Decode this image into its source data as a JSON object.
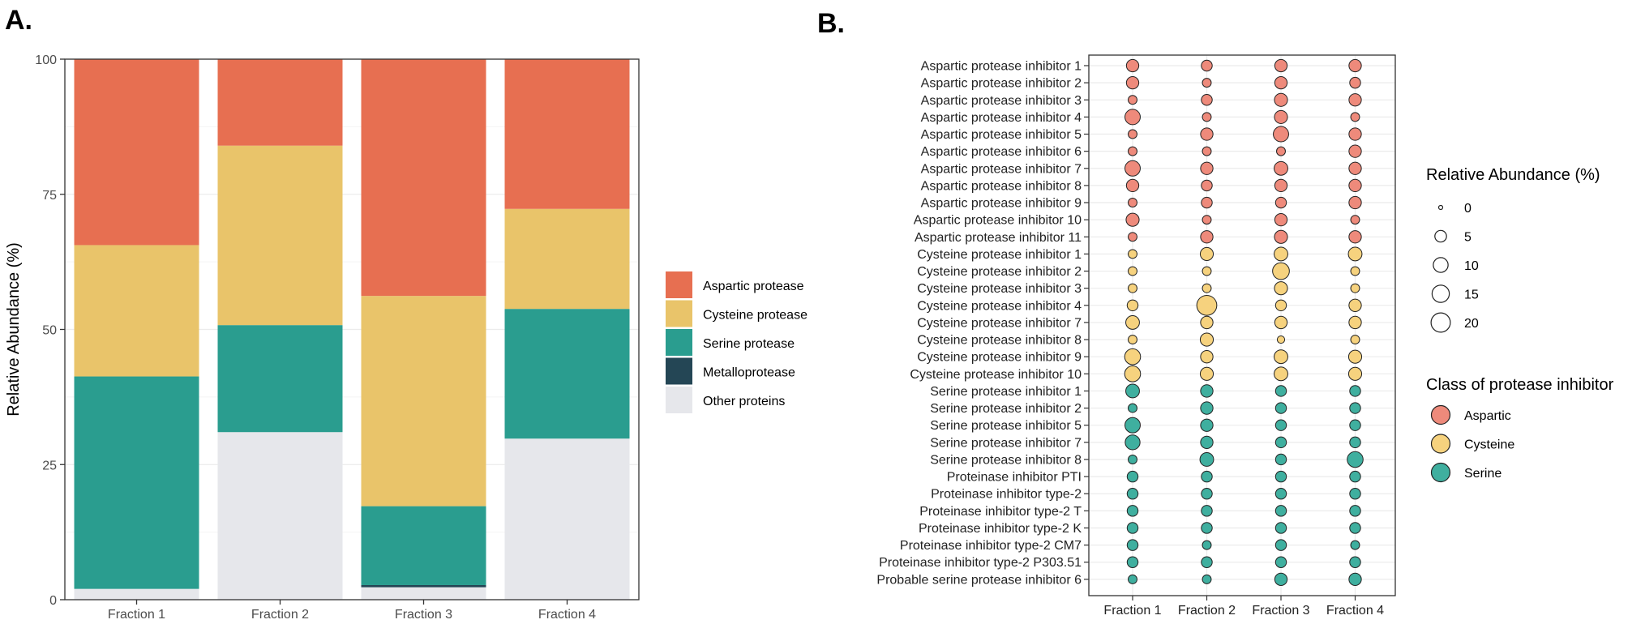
{
  "panel_a_label": "A.",
  "panel_b_label": "B.",
  "chart_data": [
    {
      "type": "bar",
      "stacked": true,
      "title": "",
      "xlabel": "",
      "ylabel": "Relative Abundance (%)",
      "ylim": [
        0,
        100
      ],
      "yticks": [
        "0",
        "25",
        "50",
        "75",
        "100"
      ],
      "categories": [
        "Fraction 1",
        "Fraction 2",
        "Fraction 3",
        "Fraction 4"
      ],
      "legend_position": "right",
      "series": [
        {
          "name": "Other proteins",
          "color": "#E6E7EB",
          "values": [
            2,
            31,
            2.3,
            29.8
          ]
        },
        {
          "name": "Metalloprotease",
          "color": "#244655",
          "values": [
            0,
            0,
            0.4,
            0
          ]
        },
        {
          "name": "Serine protease",
          "color": "#2A9D8F",
          "values": [
            39.3,
            19.8,
            14.6,
            24
          ]
        },
        {
          "name": "Cysteine protease",
          "color": "#E9C46A",
          "values": [
            24.3,
            33.2,
            38.9,
            18.5
          ]
        },
        {
          "name": "Aspartic protease",
          "color": "#E76F51",
          "values": [
            34.4,
            16,
            43.8,
            27.7
          ]
        }
      ],
      "legend_order": [
        "Aspartic protease",
        "Cysteine protease",
        "Serine protease",
        "Metalloprotease",
        "Other proteins"
      ]
    },
    {
      "type": "scatter",
      "subtype": "bubble",
      "xlabel": "",
      "ylabel": "",
      "categories": [
        "Fraction 1",
        "Fraction 2",
        "Fraction 3",
        "Fraction 4"
      ],
      "size_legend_title": "Relative Abundance (%)",
      "size_legend_values": [
        0,
        5,
        10,
        15,
        20
      ],
      "size_legend_labels": [
        "0",
        "5",
        "10",
        "15",
        "20"
      ],
      "class_legend_title": "Class of protease inhibitor",
      "classes": [
        {
          "name": "Aspartic",
          "color": "#EE8A7B"
        },
        {
          "name": "Cysteine",
          "color": "#F6D27E"
        },
        {
          "name": "Serine",
          "color": "#3FAF9F"
        }
      ],
      "rows": [
        {
          "label": "Aspartic protease inhibitor 1",
          "class": "Aspartic",
          "values": [
            6,
            4,
            6,
            6
          ]
        },
        {
          "label": "Aspartic protease inhibitor 2",
          "class": "Aspartic",
          "values": [
            6,
            2,
            6,
            4
          ]
        },
        {
          "label": "Aspartic protease inhibitor 3",
          "class": "Aspartic",
          "values": [
            2,
            4,
            7,
            6
          ]
        },
        {
          "label": "Aspartic protease inhibitor 4",
          "class": "Aspartic",
          "values": [
            11,
            2,
            7,
            2
          ]
        },
        {
          "label": "Aspartic protease inhibitor 5",
          "class": "Aspartic",
          "values": [
            2,
            6,
            11,
            6
          ]
        },
        {
          "label": "Aspartic protease inhibitor 6",
          "class": "Aspartic",
          "values": [
            2,
            2,
            2,
            6
          ]
        },
        {
          "label": "Aspartic protease inhibitor 7",
          "class": "Aspartic",
          "values": [
            11,
            6,
            8,
            6
          ]
        },
        {
          "label": "Aspartic protease inhibitor 8",
          "class": "Aspartic",
          "values": [
            6,
            4,
            6,
            6
          ]
        },
        {
          "label": "Aspartic protease inhibitor 9",
          "class": "Aspartic",
          "values": [
            2,
            4,
            4,
            6
          ]
        },
        {
          "label": "Aspartic protease inhibitor 10",
          "class": "Aspartic",
          "values": [
            7,
            2,
            6,
            2
          ]
        },
        {
          "label": "Aspartic protease inhibitor 11",
          "class": "Aspartic",
          "values": [
            2,
            6,
            7,
            6
          ]
        },
        {
          "label": "Cysteine protease inhibitor 1",
          "class": "Cysteine",
          "values": [
            2,
            7,
            8,
            8
          ]
        },
        {
          "label": "Cysteine protease inhibitor 2",
          "class": "Cysteine",
          "values": [
            2,
            2,
            14,
            2
          ]
        },
        {
          "label": "Cysteine protease inhibitor 3",
          "class": "Cysteine",
          "values": [
            2,
            2,
            7,
            2
          ]
        },
        {
          "label": "Cysteine protease inhibitor 4",
          "class": "Cysteine",
          "values": [
            4,
            22,
            4,
            6
          ]
        },
        {
          "label": "Cysteine protease inhibitor 7",
          "class": "Cysteine",
          "values": [
            8,
            6,
            6,
            6
          ]
        },
        {
          "label": "Cysteine protease inhibitor 8",
          "class": "Cysteine",
          "values": [
            2,
            7,
            1,
            2
          ]
        },
        {
          "label": "Cysteine protease inhibitor 9",
          "class": "Cysteine",
          "values": [
            12,
            6,
            8,
            7
          ]
        },
        {
          "label": "Cysteine protease inhibitor 10",
          "class": "Cysteine",
          "values": [
            12,
            7,
            8,
            7
          ]
        },
        {
          "label": "Serine protease inhibitor 1",
          "class": "Serine",
          "values": [
            8,
            6,
            4,
            4
          ]
        },
        {
          "label": "Serine protease inhibitor 2",
          "class": "Serine",
          "values": [
            2,
            6,
            4,
            4
          ]
        },
        {
          "label": "Serine protease inhibitor 5",
          "class": "Serine",
          "values": [
            11,
            6,
            4,
            4
          ]
        },
        {
          "label": "Serine protease inhibitor 7",
          "class": "Serine",
          "values": [
            10,
            6,
            4,
            4
          ]
        },
        {
          "label": "Serine protease inhibitor 8",
          "class": "Serine",
          "values": [
            2,
            8,
            4,
            12
          ]
        },
        {
          "label": "Proteinase inhibitor PTI",
          "class": "Serine",
          "values": [
            4,
            4,
            4,
            4
          ]
        },
        {
          "label": "Proteinase inhibitor type-2",
          "class": "Serine",
          "values": [
            4,
            4,
            4,
            4
          ]
        },
        {
          "label": "Proteinase inhibitor type-2 T",
          "class": "Serine",
          "values": [
            4,
            4,
            4,
            4
          ]
        },
        {
          "label": "Proteinase inhibitor type-2 K",
          "class": "Serine",
          "values": [
            4,
            4,
            4,
            4
          ]
        },
        {
          "label": "Proteinase inhibitor type-2 CM7",
          "class": "Serine",
          "values": [
            4,
            2,
            4,
            2
          ]
        },
        {
          "label": "Proteinase inhibitor type-2 P303.51",
          "class": "Serine",
          "values": [
            4,
            4,
            4,
            4
          ]
        },
        {
          "label": "Probable serine protease inhibitor 6",
          "class": "Serine",
          "values": [
            2,
            2,
            6,
            6
          ]
        }
      ]
    }
  ]
}
